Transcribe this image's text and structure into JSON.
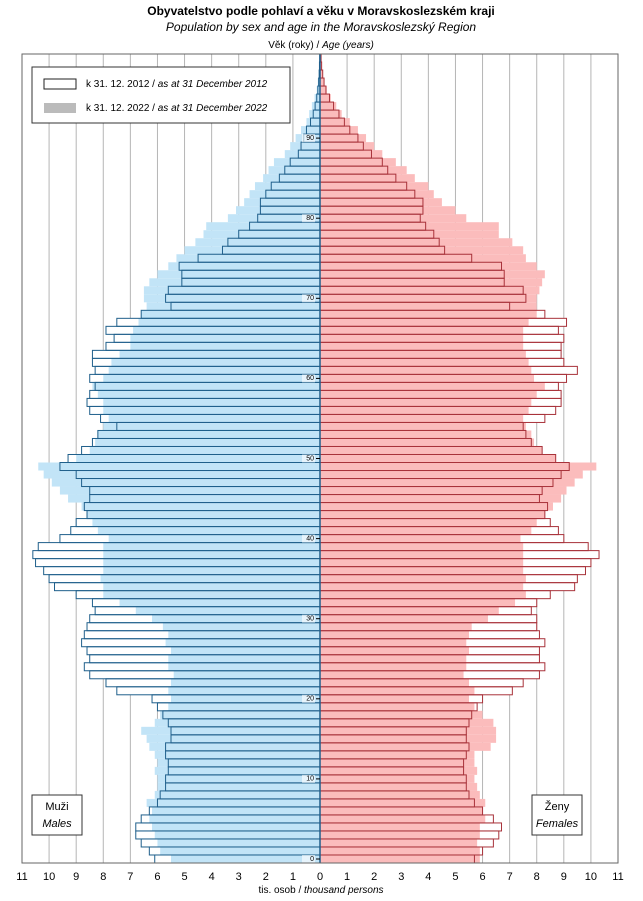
{
  "chart_data": {
    "type": "pyramid",
    "title": "Obyvatelstvo podle pohlaví a věku v Moravskoslezském kraji",
    "subtitle": "Population by sex and age in the Moravskoslezský Region",
    "y_label": "Věk (roky) /",
    "y_label_en": "Age (years)",
    "x_label": "tis. osob /",
    "x_label_en": "thousand persons",
    "xlim": [
      -11,
      11
    ],
    "xticks": [
      {
        "value": -11,
        "label": "11"
      },
      {
        "value": -10,
        "label": "10"
      },
      {
        "value": -9,
        "label": "9"
      },
      {
        "value": -8,
        "label": "8"
      },
      {
        "value": -7,
        "label": "7"
      },
      {
        "value": -6,
        "label": "6"
      },
      {
        "value": -5,
        "label": "5"
      },
      {
        "value": -4,
        "label": "4"
      },
      {
        "value": -3,
        "label": "3"
      },
      {
        "value": -2,
        "label": "2"
      },
      {
        "value": -1,
        "label": "1"
      },
      0,
      1,
      2,
      3,
      4,
      5,
      6,
      7,
      8,
      9,
      10,
      11
    ],
    "ylim": [
      -0.5,
      100.5
    ],
    "yticks": [
      0,
      10,
      20,
      30,
      40,
      50,
      60,
      70,
      80,
      90
    ],
    "grid": true,
    "series": [
      {
        "name": "k 31. 12. 2012 /",
        "name_en": "as at 31 December 2012",
        "style": "outline",
        "color": "#222222"
      },
      {
        "name": "k 31. 12. 2022 /",
        "name_en": "as at 31 December 2022",
        "style": "fill",
        "color": "#bbbbbb"
      }
    ],
    "groups": [
      {
        "label": "Muži",
        "label_en": "Males",
        "side": "left",
        "colors": [
          "#1f5f8b",
          "#c2e4f7"
        ],
        "values": [
          [
            6.1,
            6.3,
            6.6,
            6.8,
            6.8,
            6.6,
            6.3,
            6.0,
            5.9,
            5.7,
            5.7,
            5.6,
            5.6,
            5.7,
            5.7,
            5.5,
            5.5,
            5.6,
            5.8,
            6.0,
            6.2,
            7.5,
            7.9,
            8.5,
            8.7,
            8.5,
            8.6,
            8.8,
            8.7,
            8.6,
            8.5,
            8.3,
            8.4,
            9.0,
            9.8,
            10.0,
            10.2,
            10.5,
            10.6,
            10.4,
            9.6,
            9.2,
            9.0,
            8.6,
            8.7,
            8.5,
            8.5,
            8.8,
            9.0,
            9.6,
            9.3,
            8.8,
            8.4,
            8.2,
            7.5,
            8.1,
            8.5,
            8.6,
            8.5,
            8.3,
            8.5,
            8.3,
            8.4,
            8.4,
            7.9,
            7.6,
            7.9,
            7.5,
            6.6,
            5.5,
            5.7,
            5.6,
            5.1,
            5.1,
            5.2,
            4.5,
            3.6,
            3.4,
            3.0,
            2.6,
            2.3,
            2.2,
            2.2,
            2.0,
            1.8,
            1.5,
            1.3,
            1.1,
            0.8,
            0.7,
            0.6,
            0.5,
            0.35,
            0.25,
            0.18,
            0.12,
            0.08,
            0.05,
            0.03,
            0.02,
            0.01
          ],
          [
            5.5,
            5.9,
            6.0,
            6.1,
            6.2,
            6.3,
            6.2,
            6.4,
            6.1,
            6.0,
            6.0,
            6.1,
            6.0,
            6.1,
            6.3,
            6.4,
            6.6,
            6.1,
            5.9,
            5.6,
            5.5,
            5.6,
            5.5,
            5.4,
            5.6,
            5.6,
            5.5,
            5.7,
            5.6,
            5.8,
            6.2,
            6.8,
            7.4,
            8.0,
            8.0,
            8.1,
            8.0,
            8.0,
            8.0,
            8.0,
            7.8,
            8.2,
            8.4,
            8.6,
            8.8,
            9.3,
            9.6,
            9.9,
            10.2,
            10.4,
            9.0,
            8.5,
            8.3,
            8.2,
            8.0,
            7.8,
            8.0,
            8.0,
            8.2,
            8.4,
            8.0,
            7.8,
            7.7,
            7.4,
            7.0,
            7.0,
            6.9,
            6.7,
            6.6,
            6.4,
            6.5,
            6.5,
            6.3,
            6.0,
            5.6,
            5.3,
            5.0,
            4.6,
            4.3,
            4.2,
            3.4,
            3.1,
            2.8,
            2.6,
            2.4,
            2.1,
            1.9,
            1.7,
            1.3,
            1.1,
            0.9,
            0.7,
            0.5,
            0.4,
            0.3,
            0.2,
            0.12,
            0.08,
            0.05,
            0.03,
            0.02
          ]
        ]
      },
      {
        "label": "Ženy",
        "label_en": "Females",
        "side": "right",
        "colors": [
          "#a8323a",
          "#fbbcbc"
        ],
        "values": [
          [
            5.7,
            6.0,
            6.4,
            6.6,
            6.7,
            6.4,
            6.0,
            5.7,
            5.5,
            5.4,
            5.4,
            5.3,
            5.3,
            5.4,
            5.5,
            5.4,
            5.4,
            5.5,
            5.6,
            5.8,
            6.0,
            7.1,
            7.5,
            8.1,
            8.3,
            8.1,
            8.1,
            8.3,
            8.1,
            8.0,
            8.0,
            7.8,
            8.0,
            8.5,
            9.4,
            9.5,
            9.8,
            10.0,
            10.3,
            9.9,
            9.0,
            8.8,
            8.5,
            8.3,
            8.4,
            8.1,
            8.2,
            8.6,
            8.9,
            9.2,
            8.7,
            8.2,
            7.8,
            7.6,
            7.5,
            8.3,
            8.7,
            8.9,
            8.9,
            8.8,
            9.1,
            9.5,
            9.0,
            8.9,
            8.9,
            9.0,
            8.8,
            9.1,
            8.3,
            7.0,
            7.6,
            7.5,
            6.8,
            6.8,
            6.7,
            5.6,
            4.6,
            4.4,
            4.2,
            3.9,
            3.7,
            3.8,
            3.8,
            3.5,
            3.2,
            2.8,
            2.5,
            2.3,
            1.9,
            1.6,
            1.4,
            1.1,
            0.9,
            0.7,
            0.5,
            0.35,
            0.22,
            0.15,
            0.1,
            0.06,
            0.04
          ],
          [
            5.9,
            5.9,
            5.8,
            5.9,
            5.9,
            6.1,
            6.0,
            6.1,
            5.9,
            5.8,
            5.7,
            5.8,
            5.7,
            5.7,
            6.3,
            6.5,
            6.5,
            6.4,
            6.0,
            5.7,
            5.5,
            5.7,
            5.5,
            5.3,
            5.4,
            5.4,
            5.5,
            5.4,
            5.5,
            5.6,
            6.2,
            6.6,
            7.2,
            7.6,
            7.5,
            7.6,
            7.5,
            7.5,
            7.5,
            7.5,
            7.4,
            7.8,
            8.0,
            8.3,
            8.6,
            8.9,
            9.1,
            9.4,
            9.7,
            10.2,
            8.7,
            8.2,
            7.9,
            7.8,
            7.6,
            7.5,
            7.7,
            7.8,
            8.0,
            8.3,
            7.9,
            7.8,
            7.7,
            7.6,
            7.5,
            7.5,
            7.5,
            7.7,
            8.0,
            8.0,
            8.0,
            8.1,
            8.2,
            8.3,
            8.0,
            7.6,
            7.5,
            7.1,
            6.6,
            6.6,
            5.4,
            5.0,
            4.5,
            4.2,
            4.0,
            3.5,
            3.2,
            2.8,
            2.3,
            2.0,
            1.7,
            1.4,
            1.1,
            0.8,
            0.6,
            0.4,
            0.25,
            0.15,
            0.1,
            0.06,
            0.03
          ]
        ]
      }
    ]
  }
}
